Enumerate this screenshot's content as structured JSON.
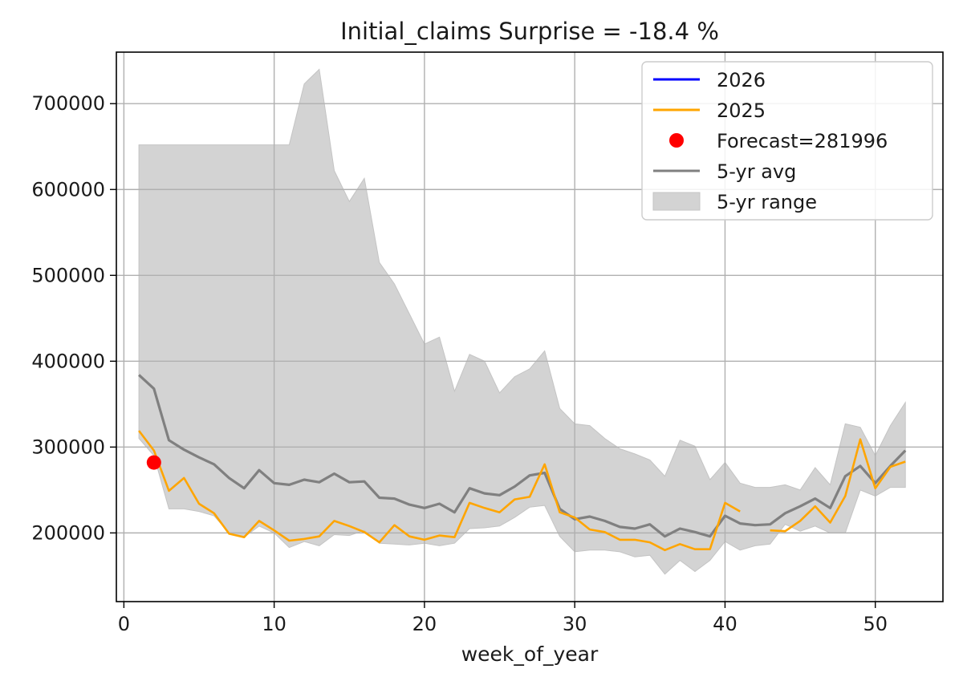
{
  "chart_data": {
    "type": "line",
    "title": "Initial_claims Surprise = -18.4 %",
    "xlabel": "week_of_year",
    "ylabel": "",
    "xlim": [
      -0.5,
      54.5
    ],
    "ylim": [
      120000,
      760000
    ],
    "xticks": [
      0,
      10,
      20,
      30,
      40,
      50
    ],
    "yticks": [
      200000,
      300000,
      400000,
      500000,
      600000,
      700000
    ],
    "grid": true,
    "legend_position": "top-right",
    "legend": [
      {
        "label": "2026",
        "kind": "line",
        "color": "#0000ff"
      },
      {
        "label": "2025",
        "kind": "line",
        "color": "#ffa500"
      },
      {
        "label": "Forecast=281996",
        "kind": "dot",
        "color": "#ff0000"
      },
      {
        "label": "5-yr avg",
        "kind": "line",
        "color": "#808080"
      },
      {
        "label": "5-yr range",
        "kind": "band",
        "color": "#d3d3d3"
      }
    ],
    "range_band": {
      "name": "5-yr range",
      "x": [
        1,
        2,
        3,
        4,
        5,
        6,
        7,
        8,
        9,
        10,
        11,
        12,
        13,
        14,
        15,
        16,
        17,
        18,
        19,
        20,
        21,
        22,
        23,
        24,
        25,
        26,
        27,
        28,
        29,
        30,
        31,
        32,
        33,
        34,
        35,
        36,
        37,
        38,
        39,
        40,
        41,
        42,
        43,
        44,
        45,
        46,
        47,
        48,
        49,
        50,
        51,
        52
      ],
      "upper": [
        652000,
        652000,
        652000,
        652000,
        652000,
        652000,
        652000,
        652000,
        652000,
        652000,
        652000,
        723000,
        740000,
        622000,
        586000,
        613000,
        515000,
        490000,
        455000,
        420000,
        428000,
        365000,
        408000,
        400000,
        363000,
        382000,
        391000,
        412000,
        345000,
        327000,
        325000,
        310000,
        298000,
        292000,
        285000,
        266000,
        308000,
        301000,
        262000,
        282000,
        258000,
        253000,
        253000,
        256000,
        250000,
        276000,
        256000,
        327000,
        323000,
        290000,
        325000,
        352000
      ],
      "lower": [
        310000,
        290000,
        228000,
        228000,
        225000,
        220000,
        200000,
        195000,
        208000,
        200000,
        183000,
        190000,
        185000,
        198000,
        197000,
        203000,
        188000,
        187000,
        186000,
        188000,
        185000,
        188000,
        205000,
        206000,
        208000,
        218000,
        230000,
        232000,
        196000,
        178000,
        180000,
        180000,
        178000,
        172000,
        174000,
        152000,
        168000,
        155000,
        168000,
        190000,
        180000,
        185000,
        187000,
        210000,
        202000,
        208000,
        200000,
        200000,
        250000,
        243000,
        253000,
        253000
      ]
    },
    "series": [
      {
        "name": "5-yr avg",
        "color": "#808080",
        "x": [
          1,
          2,
          3,
          4,
          5,
          6,
          7,
          8,
          9,
          10,
          11,
          12,
          13,
          14,
          15,
          16,
          17,
          18,
          19,
          20,
          21,
          22,
          23,
          24,
          25,
          26,
          27,
          28,
          29,
          30,
          31,
          32,
          33,
          34,
          35,
          36,
          37,
          38,
          39,
          40,
          41,
          42,
          43,
          44,
          45,
          46,
          47,
          48,
          49,
          50,
          51,
          52
        ],
        "y": [
          384000,
          368000,
          308000,
          297000,
          288000,
          280000,
          264000,
          252000,
          273000,
          258000,
          256000,
          262000,
          259000,
          269000,
          259000,
          260000,
          241000,
          240000,
          233000,
          229000,
          234000,
          224000,
          252000,
          246000,
          244000,
          254000,
          267000,
          270000,
          228000,
          216000,
          219000,
          214000,
          207000,
          205000,
          210000,
          196000,
          205000,
          201000,
          196000,
          220000,
          211000,
          209000,
          210000,
          223000,
          231000,
          240000,
          229000,
          266000,
          278000,
          258000,
          278000,
          296000
        ]
      },
      {
        "name": "2025",
        "color": "#ffa500",
        "x": [
          1,
          2,
          3,
          4,
          5,
          6,
          7,
          8,
          9,
          10,
          11,
          12,
          13,
          14,
          15,
          16,
          17,
          18,
          19,
          20,
          21,
          22,
          23,
          24,
          25,
          26,
          27,
          28,
          29,
          30,
          31,
          32,
          33,
          34,
          35,
          36,
          37,
          38,
          39,
          40,
          41,
          42,
          43,
          44,
          45,
          46,
          47,
          48,
          49,
          50,
          51,
          52
        ],
        "y": [
          319000,
          296000,
          249000,
          264000,
          234000,
          223000,
          199000,
          195000,
          214000,
          203000,
          191000,
          193000,
          196000,
          214000,
          208000,
          201000,
          189000,
          209000,
          196000,
          192000,
          197000,
          195000,
          235000,
          229000,
          224000,
          239000,
          242000,
          280000,
          224000,
          218000,
          204000,
          201000,
          192000,
          192000,
          189000,
          180000,
          187000,
          181000,
          181000,
          235000,
          225000,
          null,
          203000,
          202000,
          214000,
          231000,
          212000,
          243000,
          309000,
          252000,
          277000,
          283000
        ]
      },
      {
        "name": "2026",
        "color": "#0000ff",
        "x": [],
        "y": []
      }
    ],
    "forecast": {
      "label": "Forecast=281996",
      "x": 2,
      "y": 281996,
      "color": "#ff0000"
    }
  }
}
